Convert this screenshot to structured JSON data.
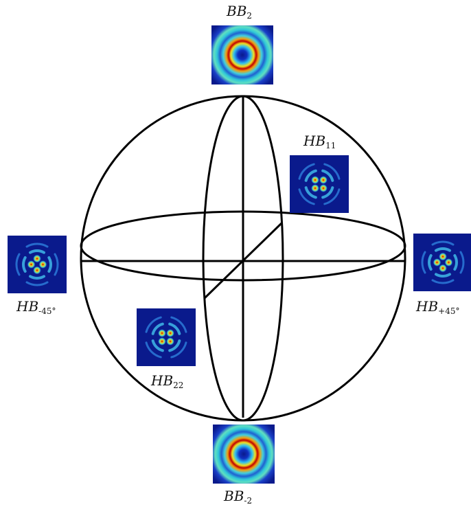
{
  "poles": {
    "top": {
      "label_main": "BB",
      "label_sub": "2",
      "mode_type": "bessel-beam"
    },
    "bottom": {
      "label_main": "BB",
      "label_sub": "-2",
      "mode_type": "bessel-beam"
    }
  },
  "equator": {
    "left": {
      "label_main": "HB",
      "label_sub": "-45°",
      "mode_type": "hermite-bessel",
      "rotation_deg": -45
    },
    "right": {
      "label_main": "HB",
      "label_sub": "+45°",
      "mode_type": "hermite-bessel",
      "rotation_deg": 45
    },
    "back_right": {
      "label_main": "HB",
      "label_sub": "11",
      "mode_type": "hermite-bessel",
      "rotation_deg": 0
    },
    "front_left": {
      "label_main": "HB",
      "label_sub": "22",
      "mode_type": "hermite-bessel",
      "rotation_deg": 90
    }
  },
  "colors": {
    "sphere_stroke": "#000000",
    "jet_low": "#0a1a8c",
    "jet_high": "#b00000"
  }
}
